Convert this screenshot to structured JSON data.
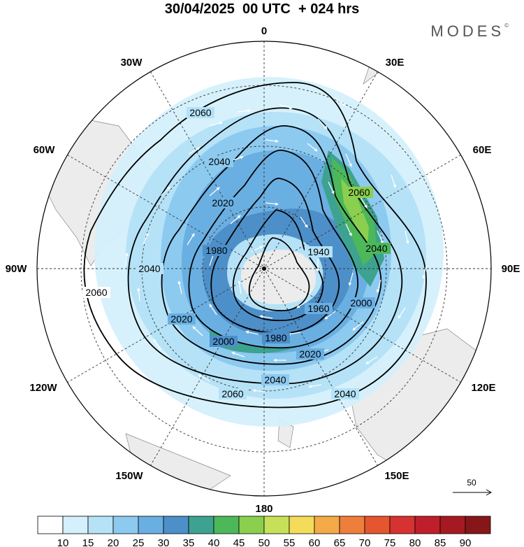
{
  "title": "30/04/2025  00 UTC  + 024 hrs",
  "brand": "MODES",
  "brand_mark": "©",
  "longitude_labels": {
    "lon_0": "0",
    "lon_30e": "30E",
    "lon_60e": "60E",
    "lon_90e": "90E",
    "lon_120e": "120E",
    "lon_150e": "150E",
    "lon_180": "180",
    "lon_150w": "150W",
    "lon_120w": "120W",
    "lon_90w": "90W",
    "lon_60w": "60W",
    "lon_30w": "30W"
  },
  "contour_labels": [
    "2060",
    "2040",
    "2020",
    "1980",
    "1940",
    "2000",
    "2040",
    "2060",
    "2040",
    "2020",
    "2000",
    "1980",
    "1960",
    "2020",
    "2040",
    "2060",
    "2040",
    "2060"
  ],
  "reference_vector": {
    "label": "50",
    "value": 50
  },
  "colorbar": {
    "labels": [
      "10",
      "15",
      "20",
      "25",
      "30",
      "35",
      "40",
      "45",
      "50",
      "55",
      "60",
      "65",
      "70",
      "75",
      "80",
      "85",
      "90"
    ],
    "colors": [
      "#ffffff",
      "#d4f0fc",
      "#b5e2f7",
      "#8dcaf0",
      "#6aafe2",
      "#4d8fc9",
      "#3ea290",
      "#4cb85a",
      "#8bcf4e",
      "#c7e05a",
      "#f4dc5a",
      "#f3aa47",
      "#ee7e3b",
      "#e5552f",
      "#d63231",
      "#bf1f2b",
      "#a51a22",
      "#871618"
    ]
  },
  "map_layers": {
    "shading": "wind speed",
    "contours": "geopotential height",
    "vectors": "wind direction"
  }
}
